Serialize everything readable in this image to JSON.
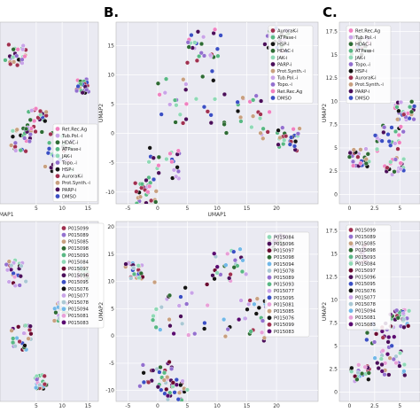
{
  "panel_labels": [
    "B.",
    "C."
  ],
  "chart_data": [
    {
      "id": "A-top",
      "type": "scatter",
      "xlabel": "UMAP1",
      "ylabel": "",
      "x_ticks": [
        5,
        10,
        15
      ],
      "y_ticks": [],
      "xlim": [
        -2,
        17
      ],
      "ylim": [
        -8,
        20
      ],
      "legend": [
        "Ret.Rec.Ag",
        "Tub.Pol.-i",
        "HDAC-i",
        "ATPase-i",
        "JAK-i",
        "Topo.-i",
        "HSP-i",
        "AuroraK-i",
        "Prot.Synth.-i",
        "PARP-i",
        "DMSO"
      ],
      "legend_colors": [
        "#f081c0",
        "#c9a4e8",
        "#2e6b34",
        "#59b884",
        "#8fd9b6",
        "#9370cf",
        "#141414",
        "#a03050",
        "#c8a080",
        "#4b0f5a",
        "#3b4fc4"
      ]
    },
    {
      "id": "B-top",
      "type": "scatter",
      "xlabel": "UMAP1",
      "ylabel": "UMAP2",
      "x_ticks": [
        -5,
        0,
        5,
        10,
        15,
        20
      ],
      "y_ticks": [
        -10,
        -5,
        0,
        5,
        10,
        15
      ],
      "xlim": [
        -7,
        27
      ],
      "ylim": [
        -12,
        19
      ],
      "legend": [
        "AuroraK-i",
        "ATPase-i",
        "HSP-i",
        "HDAC-i",
        "JAK-i",
        "PARP-i",
        "Prot.Synth.-i",
        "Tub.Pol.-i",
        "Topo.-i",
        "Ret.Rec.Ag",
        "DMSO"
      ],
      "legend_colors": [
        "#a03050",
        "#59b884",
        "#141414",
        "#2e6b34",
        "#8fd9b6",
        "#4b0f5a",
        "#c8a080",
        "#c9a4e8",
        "#9370cf",
        "#f081c0",
        "#3b4fc4"
      ]
    },
    {
      "id": "C-top",
      "type": "scatter",
      "xlabel": "",
      "ylabel": "UMAP2",
      "x_ticks": [
        0.0,
        2.5,
        5.0
      ],
      "y_ticks": [
        0.0,
        2.5,
        5.0,
        7.5,
        10.0,
        12.5,
        15.0,
        17.5
      ],
      "xlim": [
        -1,
        7
      ],
      "ylim": [
        -1,
        18.5
      ],
      "legend": [
        "Ret.Rec.Ag",
        "Tub.Pol.-i",
        "HDAC-i",
        "ATPase-i",
        "JAK-i",
        "Topo.-i",
        "HSP-i",
        "AuroraK-i",
        "Prot.Synth.-i",
        "PARP-i",
        "DMSO"
      ],
      "legend_colors": [
        "#f081c0",
        "#c9a4e8",
        "#2e6b34",
        "#59b884",
        "#8fd9b6",
        "#9370cf",
        "#141414",
        "#a03050",
        "#c8a080",
        "#4b0f5a",
        "#3b4fc4"
      ]
    },
    {
      "id": "A-bottom",
      "type": "scatter",
      "xlabel": "",
      "ylabel": "",
      "x_ticks": [
        5,
        10,
        15
      ],
      "y_ticks": [],
      "xlim": [
        -2,
        17
      ],
      "ylim": [
        -8,
        20
      ],
      "legend": [
        "P015099",
        "P015089",
        "P015085",
        "P015098",
        "P015093",
        "P015084",
        "P015097",
        "P015096",
        "P015095",
        "P015076",
        "P015077",
        "P015078",
        "P015094",
        "P015081",
        "P015083"
      ],
      "legend_colors": [
        "#a03050",
        "#9370cf",
        "#c8a080",
        "#2e6b34",
        "#59b884",
        "#8fd9b6",
        "#6a0a30",
        "#4b0f5a",
        "#3b4fc4",
        "#141414",
        "#c9a4e8",
        "#aac8d4",
        "#72b8e8",
        "#e8a0d8",
        "#5a0a70"
      ]
    },
    {
      "id": "B-bottom",
      "type": "scatter",
      "xlabel": "",
      "ylabel": "UMAP2",
      "x_ticks": [
        -5,
        0,
        5,
        10,
        15,
        20
      ],
      "y_ticks": [
        -10,
        -5,
        0,
        5,
        10,
        15,
        20
      ],
      "xlim": [
        -7,
        27
      ],
      "ylim": [
        -12,
        21
      ],
      "legend": [
        "P015084",
        "P015096",
        "P015097",
        "P015098",
        "P015094",
        "P015078",
        "P015089",
        "P015093",
        "P015077",
        "P015095",
        "P015081",
        "P015085",
        "P015076",
        "P015099",
        "P015083"
      ],
      "legend_colors": [
        "#8fd9b6",
        "#4b0f5a",
        "#6a0a30",
        "#2e6b34",
        "#72b8e8",
        "#aac8d4",
        "#9370cf",
        "#59b884",
        "#c9a4e8",
        "#3b4fc4",
        "#e8a0d8",
        "#c8a080",
        "#141414",
        "#a03050",
        "#5a0a70"
      ]
    },
    {
      "id": "C-bottom",
      "type": "scatter",
      "xlabel": "",
      "ylabel": "UMAP2",
      "x_ticks": [
        0.0,
        2.5,
        5.0
      ],
      "y_ticks": [
        0.0,
        2.5,
        5.0,
        7.5,
        10.0,
        12.5,
        15.0,
        17.5
      ],
      "xlim": [
        -1,
        7
      ],
      "ylim": [
        -1,
        18.5
      ],
      "legend": [
        "P015099",
        "P015089",
        "P015085",
        "P015098",
        "P015093",
        "P015084",
        "P015097",
        "P015096",
        "P015095",
        "P015076",
        "P015077",
        "P015078",
        "P015094",
        "P015081",
        "P015083"
      ],
      "legend_colors": [
        "#a03050",
        "#9370cf",
        "#c8a080",
        "#2e6b34",
        "#59b884",
        "#8fd9b6",
        "#6a0a30",
        "#4b0f5a",
        "#3b4fc4",
        "#141414",
        "#c9a4e8",
        "#aac8d4",
        "#72b8e8",
        "#e8a0d8",
        "#5a0a70"
      ]
    }
  ]
}
